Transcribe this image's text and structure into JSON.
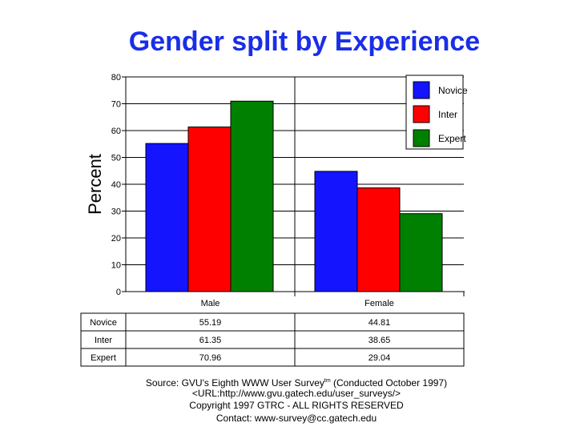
{
  "chart_data": {
    "type": "bar",
    "title": "Gender split by Experience",
    "ylabel": "Percent",
    "xlabel": "",
    "ylim": [
      0,
      80
    ],
    "yticks": [
      0,
      10,
      20,
      30,
      40,
      50,
      60,
      70,
      80
    ],
    "categories": [
      "Male",
      "Female"
    ],
    "series": [
      {
        "name": "Novice",
        "color": "#1414ff",
        "values": [
          55.19,
          44.81
        ]
      },
      {
        "name": "Inter",
        "color": "#ff0000",
        "values": [
          61.35,
          38.65
        ]
      },
      {
        "name": "Expert",
        "color": "#008000",
        "values": [
          70.96,
          29.04
        ]
      }
    ],
    "legend_position": "top-right",
    "table": {
      "rows": [
        {
          "label": "Novice",
          "cells": [
            "55.19",
            "44.81"
          ]
        },
        {
          "label": "Inter",
          "cells": [
            "61.35",
            "38.65"
          ]
        },
        {
          "label": "Expert",
          "cells": [
            "70.96",
            "29.04"
          ]
        }
      ]
    }
  },
  "footer": {
    "source_text": "Source: GVU's Eighth WWW User Survey",
    "source_sup": "tm",
    "source_tail": " (Conducted October 1997)",
    "url": "<URL:http://www.gvu.gatech.edu/user_surveys/>",
    "copyright": "Copyright 1997 GTRC - ALL RIGHTS RESERVED",
    "contact": "Contact: www-survey@cc.gatech.edu"
  }
}
